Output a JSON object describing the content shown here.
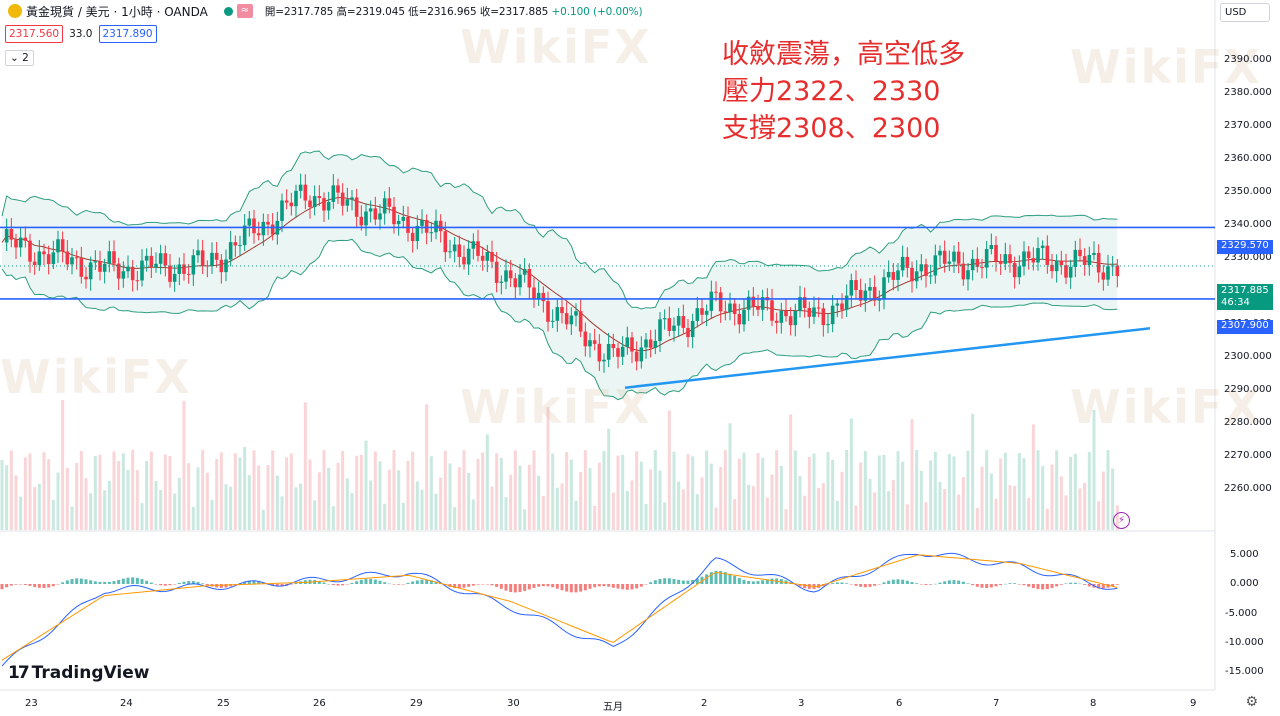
{
  "header": {
    "symbol": "黃金現貨 / 美元 · 1小時 · OANDA",
    "open": "開=2317.785",
    "high": "高=2319.045",
    "low": "低=2316.965",
    "close": "收=2317.885",
    "change": "+0.100 (+0.00%)",
    "market_status_color": "#089981",
    "approx_badge": "≈"
  },
  "price_row": {
    "bid": "2317.560",
    "spread": "33.0",
    "ask": "2317.890"
  },
  "indicator_toggle": {
    "label": "2"
  },
  "currency": "USD",
  "annotation": [
    "收斂震蕩，高空低多",
    "壓力2322、2330",
    "支撐2308、2300"
  ],
  "price_axis": [
    "2390.000",
    "2380.000",
    "2370.000",
    "2360.000",
    "2350.000",
    "2340.000",
    "2330.000",
    "2320.000",
    "2310.000",
    "2300.000",
    "2290.000",
    "2280.000",
    "2270.000",
    "2260.000"
  ],
  "macd_axis": [
    "5.000",
    "0.000",
    "-5.000",
    "-10.000",
    "-15.000"
  ],
  "time_axis": [
    "23",
    "24",
    "25",
    "26",
    "29",
    "30",
    "五月",
    "2",
    "3",
    "6",
    "7",
    "8",
    "9"
  ],
  "price_tags": {
    "resistance": "2329.570",
    "current": "2317.885",
    "countdown": "46:34",
    "support": "2307.900",
    "resistance_color": "#2962ff",
    "current_color": "#089981"
  },
  "brand": "TradingView",
  "watermark": "WikiFX",
  "colors": {
    "up": "#089981",
    "down": "#f23645",
    "band_fill": "#e6f4f1",
    "band_line": "#2e9d80",
    "mid_line": "#a33a2f",
    "hline": "#2962ff",
    "trend": "#2196f3",
    "macd_line": "#2962ff",
    "signal_line": "#ff9800"
  },
  "chart_data": [
    {
      "type": "candlestick",
      "title": "",
      "ylim": [
        2255,
        2395
      ],
      "x": [
        "4/23",
        "4/24",
        "4/25",
        "4/26",
        "4/29",
        "4/30",
        "5/1",
        "5/2",
        "5/3",
        "5/6",
        "5/7",
        "5/8"
      ],
      "close": [
        2325,
        2317,
        2318,
        2340,
        2331,
        2315,
        2290,
        2306,
        2303,
        2318,
        2320,
        2317.885
      ],
      "horizontal_lines": [
        2329.57,
        2307.9
      ],
      "trend_line": {
        "from": [
          "5/1 05:00",
          2281
        ],
        "to": [
          "5/8 18:00",
          2299
        ]
      }
    },
    {
      "type": "line",
      "title": "",
      "ylim": [
        -16,
        6.5
      ],
      "x": [
        "4/23",
        "4/24",
        "4/25",
        "4/26",
        "4/29",
        "4/30",
        "5/1",
        "5/2",
        "5/3",
        "5/6",
        "5/7",
        "5/8"
      ],
      "series": [
        {
          "values": [
            -14,
            -1,
            -0.5,
            0.5,
            2,
            -4,
            -11,
            4,
            -1,
            5.5,
            3,
            -1
          ]
        },
        {
          "values": [
            -13,
            -2,
            -0.3,
            0.3,
            1.5,
            -3,
            -10,
            2,
            -0.5,
            5,
            3.5,
            -0.8
          ]
        }
      ]
    }
  ]
}
